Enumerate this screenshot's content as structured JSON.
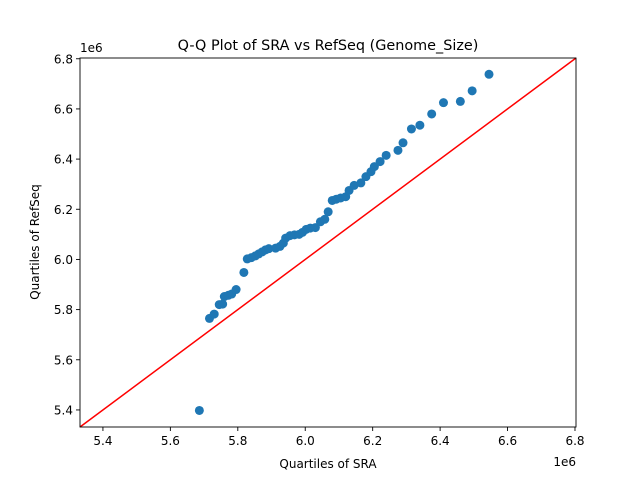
{
  "chart_data": {
    "type": "scatter",
    "title": "Q-Q Plot of SRA vs RefSeq (Genome_Size)",
    "xlabel": "Quartiles of SRA",
    "ylabel": "Quartiles of RefSeq",
    "x_offset_label": "1e6",
    "y_offset_label": "1e6",
    "xlim": [
      5.332,
      6.803
    ],
    "ylim": [
      5.332,
      6.803
    ],
    "xticks": [
      5.4,
      5.6,
      5.8,
      6.0,
      6.2,
      6.4,
      6.6,
      6.8
    ],
    "xtick_labels": [
      "5.4",
      "5.6",
      "5.8",
      "6.0",
      "6.2",
      "6.4",
      "6.6",
      "6.8"
    ],
    "yticks": [
      5.4,
      5.6,
      5.8,
      6.0,
      6.2,
      6.4,
      6.6,
      6.8
    ],
    "ytick_labels": [
      "5.4",
      "5.6",
      "5.8",
      "6.0",
      "6.2",
      "6.4",
      "6.6",
      "6.8"
    ],
    "grid": false,
    "point_color": "#1f77b4",
    "reference_line": {
      "type": "y=x",
      "color": "#ff0000"
    },
    "points": [
      [
        5.686,
        5.398
      ],
      [
        5.716,
        5.765
      ],
      [
        5.73,
        5.782
      ],
      [
        5.745,
        5.82
      ],
      [
        5.755,
        5.822
      ],
      [
        5.76,
        5.852
      ],
      [
        5.772,
        5.857
      ],
      [
        5.782,
        5.862
      ],
      [
        5.795,
        5.88
      ],
      [
        5.818,
        5.948
      ],
      [
        5.828,
        6.002
      ],
      [
        5.84,
        6.007
      ],
      [
        5.852,
        6.014
      ],
      [
        5.862,
        6.022
      ],
      [
        5.872,
        6.03
      ],
      [
        5.882,
        6.038
      ],
      [
        5.892,
        6.043
      ],
      [
        5.912,
        6.045
      ],
      [
        5.925,
        6.052
      ],
      [
        5.935,
        6.065
      ],
      [
        5.942,
        6.085
      ],
      [
        5.955,
        6.095
      ],
      [
        5.968,
        6.098
      ],
      [
        5.982,
        6.1
      ],
      [
        5.992,
        6.108
      ],
      [
        6.003,
        6.12
      ],
      [
        6.015,
        6.125
      ],
      [
        6.03,
        6.127
      ],
      [
        6.045,
        6.15
      ],
      [
        6.058,
        6.16
      ],
      [
        6.068,
        6.19
      ],
      [
        6.08,
        6.235
      ],
      [
        6.092,
        6.24
      ],
      [
        6.105,
        6.245
      ],
      [
        6.12,
        6.25
      ],
      [
        6.13,
        6.275
      ],
      [
        6.145,
        6.295
      ],
      [
        6.165,
        6.305
      ],
      [
        6.18,
        6.33
      ],
      [
        6.195,
        6.35
      ],
      [
        6.205,
        6.37
      ],
      [
        6.222,
        6.39
      ],
      [
        6.24,
        6.415
      ],
      [
        6.275,
        6.435
      ],
      [
        6.29,
        6.465
      ],
      [
        6.315,
        6.52
      ],
      [
        6.34,
        6.535
      ],
      [
        6.375,
        6.58
      ],
      [
        6.41,
        6.625
      ],
      [
        6.46,
        6.63
      ],
      [
        6.495,
        6.672
      ],
      [
        6.545,
        6.738
      ]
    ]
  }
}
